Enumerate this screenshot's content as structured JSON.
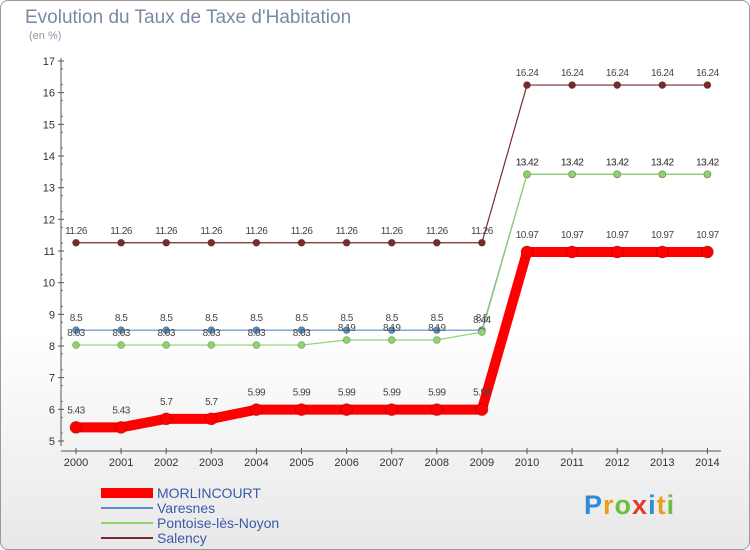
{
  "chart_data": {
    "type": "line",
    "title": "Evolution du Taux de Taxe d'Habitation",
    "subtitle": "(en %)",
    "categories": [
      "2000",
      "2001",
      "2002",
      "2003",
      "2004",
      "2005",
      "2006",
      "2007",
      "2008",
      "2009",
      "2010",
      "2011",
      "2012",
      "2013",
      "2014"
    ],
    "ylim": [
      5,
      17
    ],
    "yticks": [
      "5",
      "6",
      "7",
      "8",
      "9",
      "10",
      "11",
      "12",
      "13",
      "14",
      "15",
      "16",
      "17"
    ],
    "grid": false,
    "legend_position": "bottom-left",
    "series": [
      {
        "name": "Salency",
        "color": "#7a2a2a",
        "values": [
          11.26,
          11.26,
          11.26,
          11.26,
          11.26,
          11.26,
          11.26,
          11.26,
          11.26,
          11.26,
          16.24,
          16.24,
          16.24,
          16.24,
          16.24
        ],
        "labels": [
          "11.26",
          "11.26",
          "11.26",
          "11.26",
          "11.26",
          "11.26",
          "11.26",
          "11.26",
          "11.26",
          "11.26",
          "16.24",
          "16.24",
          "16.24",
          "16.24",
          "16.24"
        ]
      },
      {
        "name": "Varesnes",
        "color": "#5a8ec2",
        "values": [
          8.5,
          8.5,
          8.5,
          8.5,
          8.5,
          8.5,
          8.5,
          8.5,
          8.5,
          8.5,
          13.42,
          13.42,
          13.42,
          13.42,
          13.42
        ],
        "labels": [
          "8.5",
          "8.5",
          "8.5",
          "8.5",
          "8.5",
          "8.5",
          "8.5",
          "8.5",
          "8.5",
          "8.5",
          "13.42",
          "13.42",
          "13.42",
          "13.42",
          "13.42"
        ]
      },
      {
        "name": "Pontoise-lès-Noyon",
        "color": "#8fd46a",
        "values": [
          8.03,
          8.03,
          8.03,
          8.03,
          8.03,
          8.03,
          8.19,
          8.19,
          8.19,
          8.44,
          13.42,
          13.42,
          13.42,
          13.42,
          13.42
        ],
        "labels": [
          "8.03",
          "8.03",
          "8.03",
          "8.03",
          "8.03",
          "8.03",
          "8.19",
          "8.19",
          "8.19",
          "8.44",
          "13.42",
          "13.42",
          "13.42",
          "13.42",
          "13.42"
        ]
      },
      {
        "name": "MORLINCOURT",
        "color": "#ff0000",
        "values": [
          5.43,
          5.43,
          5.7,
          5.7,
          5.99,
          5.99,
          5.99,
          5.99,
          5.99,
          5.99,
          10.97,
          10.97,
          10.97,
          10.97,
          10.97
        ],
        "labels": [
          "5.43",
          "5.43",
          "5.7",
          "5.7",
          "5.99",
          "5.99",
          "5.99",
          "5.99",
          "5.99",
          "5.99",
          "10.97",
          "10.97",
          "10.97",
          "10.97",
          "10.97"
        ]
      }
    ]
  },
  "legend": {
    "items": [
      {
        "label": "MORLINCOURT",
        "color": "#ff0000"
      },
      {
        "label": "Varesnes",
        "color": "#5a8ec2"
      },
      {
        "label": "Pontoise-lès-Noyon",
        "color": "#8fd46a"
      },
      {
        "label": "Salency",
        "color": "#7a2a2a"
      }
    ]
  },
  "logo": {
    "letters": [
      {
        "ch": "P",
        "color": "#2f8bd8"
      },
      {
        "ch": "r",
        "color": "#e6a117"
      },
      {
        "ch": "o",
        "color": "#6cbf3f"
      },
      {
        "ch": "x",
        "color": "#e03b2f"
      },
      {
        "ch": "i",
        "color": "#2f8bd8"
      },
      {
        "ch": "t",
        "color": "#e6a117"
      },
      {
        "ch": "i",
        "color": "#6cbf3f"
      }
    ]
  }
}
